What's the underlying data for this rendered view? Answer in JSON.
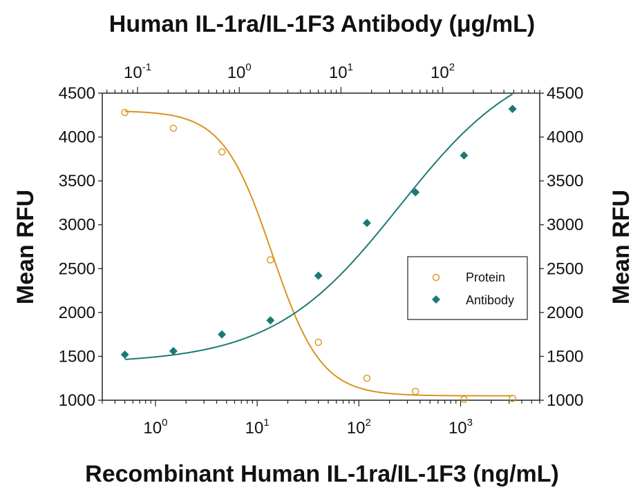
{
  "chart_data": {
    "type": "scatter",
    "title": "Human IL-1ra/IL-1F3 Antibody (μg/mL)",
    "xlabel": "Recombinant Human IL-1ra/IL-1F3 (ng/mL)",
    "ylabel": "Mean RFU",
    "ylabel_right": "Mean RFU",
    "x_scale": "log",
    "xlim": [
      0.3,
      6000
    ],
    "ylim": [
      1000,
      4500
    ],
    "yticks": [
      1000,
      1500,
      2000,
      2500,
      3000,
      3500,
      4000,
      4500
    ],
    "x_ticks": [
      {
        "value": 1,
        "base": "10",
        "exp": "0"
      },
      {
        "value": 10,
        "base": "10",
        "exp": "1"
      },
      {
        "value": 100,
        "base": "10",
        "exp": "2"
      },
      {
        "value": 1000,
        "base": "10",
        "exp": "3"
      }
    ],
    "top_axis": {
      "scale": "log",
      "xlim": [
        0.045,
        900
      ],
      "ticks": [
        {
          "value": 0.1,
          "base": "10",
          "exp": "-1"
        },
        {
          "value": 1,
          "base": "10",
          "exp": "0"
        },
        {
          "value": 10,
          "base": "10",
          "exp": "1"
        },
        {
          "value": 100,
          "base": "10",
          "exp": "2"
        }
      ]
    },
    "grid": false,
    "legend_position": "right",
    "series": [
      {
        "name": "Protein",
        "marker": "open-circle",
        "color": "#D9931E",
        "x": [
          0.5,
          1.5,
          4.5,
          13.5,
          40,
          120,
          360,
          1080,
          3240
        ],
        "y": [
          4280,
          4100,
          3830,
          2600,
          1660,
          1250,
          1100,
          1010,
          1020
        ],
        "fit": {
          "bottom": 1050,
          "top": 4300,
          "ec50": 14,
          "hill": 1.8
        }
      },
      {
        "name": "Antibody",
        "marker": "filled-diamond",
        "color": "#1A7A72",
        "x": [
          0.5,
          1.5,
          4.5,
          13.5,
          40,
          120,
          360,
          1080,
          3240
        ],
        "y": [
          1520,
          1560,
          1750,
          1910,
          2420,
          3020,
          3370,
          3790,
          4320
        ],
        "fit": {
          "bottom": 1420,
          "top": 5000,
          "ec50": 250,
          "hill": 0.7
        }
      }
    ]
  }
}
